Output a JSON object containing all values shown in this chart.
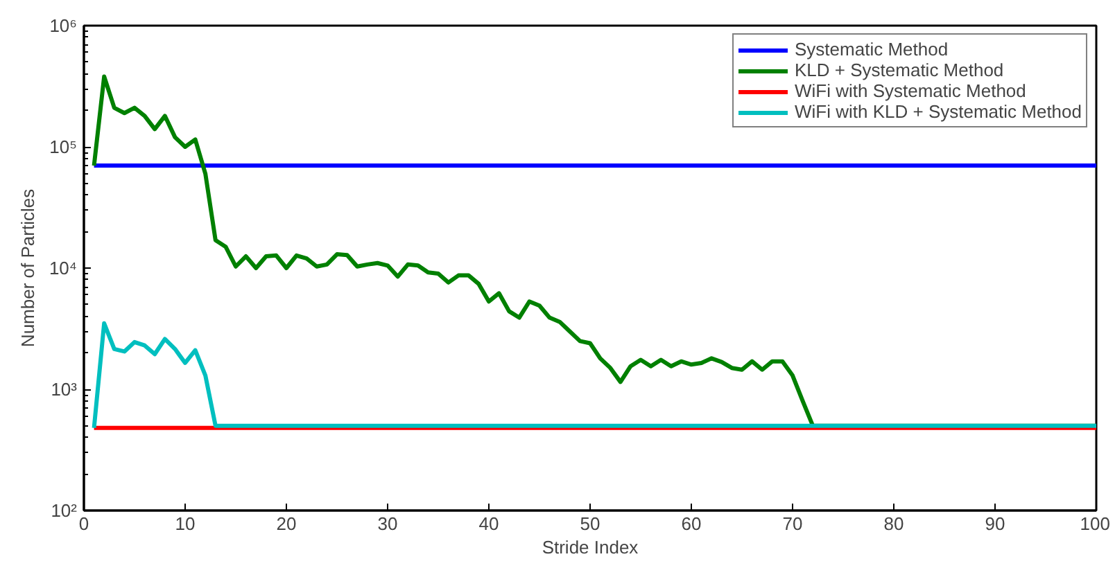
{
  "chart_data": {
    "type": "line",
    "xlabel": "Stride Index",
    "ylabel": "Number of Particles",
    "log": "y",
    "grid": false,
    "legend": "top right",
    "line_style": "solid",
    "marker": "none",
    "xlim": [
      0,
      100
    ],
    "xticks": [
      0,
      10,
      20,
      30,
      40,
      50,
      60,
      70,
      80,
      90,
      100
    ],
    "ylim": [
      100,
      1000000
    ],
    "yticks": [
      {
        "value": 100,
        "label": "10²"
      },
      {
        "value": 1000,
        "label": "10³"
      },
      {
        "value": 10000,
        "label": "10⁴"
      },
      {
        "value": 100000,
        "label": "10⁵"
      },
      {
        "value": 1000000,
        "label": "10⁶"
      }
    ],
    "series": [
      {
        "name": "Systematic Method",
        "color": "#0000ff",
        "x": [
          1,
          100
        ],
        "values": [
          70000,
          70000
        ]
      },
      {
        "name": "KLD + Systematic Method",
        "color": "#008000",
        "x": [
          1,
          2,
          3,
          4,
          5,
          6,
          7,
          8,
          9,
          10,
          11,
          12,
          13,
          14,
          15,
          16,
          17,
          18,
          19,
          20,
          21,
          22,
          23,
          24,
          25,
          26,
          27,
          28,
          29,
          30,
          31,
          32,
          33,
          34,
          35,
          36,
          37,
          38,
          39,
          40,
          41,
          42,
          43,
          44,
          45,
          46,
          47,
          48,
          49,
          50,
          51,
          52,
          53,
          54,
          55,
          56,
          57,
          58,
          59,
          60,
          61,
          62,
          63,
          64,
          65,
          66,
          67,
          68,
          69,
          70,
          71,
          72,
          100
        ],
        "values": [
          70000,
          380000,
          210000,
          190000,
          210000,
          180000,
          140000,
          180000,
          120000,
          100000,
          115000,
          60000,
          17000,
          15000,
          10300,
          12500,
          10000,
          12500,
          12700,
          10000,
          12700,
          12000,
          10300,
          10700,
          13000,
          12800,
          10300,
          10700,
          11000,
          10500,
          8500,
          10700,
          10500,
          9200,
          9000,
          7600,
          8700,
          8700,
          7400,
          5300,
          6200,
          4400,
          3900,
          5300,
          4900,
          3900,
          3600,
          3000,
          2500,
          2400,
          1800,
          1500,
          1150,
          1550,
          1750,
          1550,
          1750,
          1550,
          1700,
          1600,
          1650,
          1800,
          1680,
          1500,
          1450,
          1700,
          1450,
          1700,
          1700,
          1300,
          800,
          500,
          500
        ]
      },
      {
        "name": "WiFi with Systematic Method",
        "color": "#ff0000",
        "x": [
          1,
          100
        ],
        "values": [
          480,
          480
        ]
      },
      {
        "name": "WiFi with KLD + Systematic Method",
        "color": "#00bfbf",
        "x": [
          1,
          2,
          3,
          4,
          5,
          6,
          7,
          8,
          9,
          10,
          11,
          12,
          13,
          100
        ],
        "values": [
          480,
          3500,
          2150,
          2050,
          2450,
          2300,
          1950,
          2600,
          2150,
          1650,
          2100,
          1300,
          500,
          500
        ]
      }
    ]
  }
}
